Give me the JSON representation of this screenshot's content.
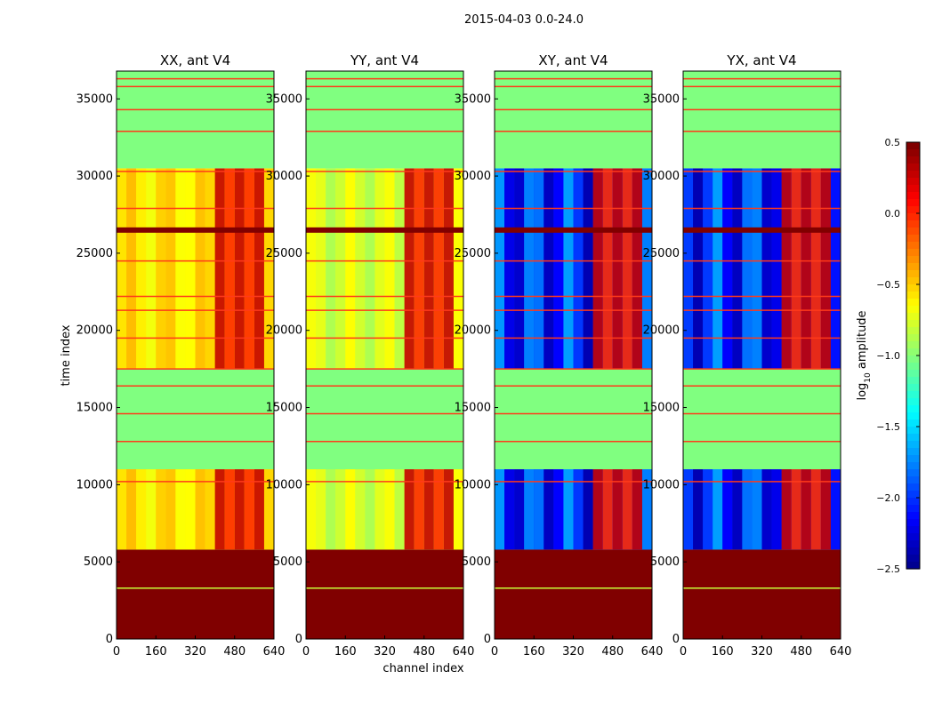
{
  "chart_data": {
    "type": "heatmap",
    "title": "2015-04-03 0.0-24.0",
    "xlabel": "channel index",
    "ylabel": "time index",
    "xlim": [
      0,
      640
    ],
    "ylim": [
      0,
      36800
    ],
    "xticks": [
      0,
      160,
      320,
      480,
      640
    ],
    "yticks": [
      0,
      5000,
      10000,
      15000,
      20000,
      25000,
      30000,
      35000
    ],
    "panels": [
      {
        "title": "XX, ant V4",
        "kind": "auto",
        "base_log": -0.55
      },
      {
        "title": "YY, ant V4",
        "kind": "auto",
        "base_log": -0.75
      },
      {
        "title": "XY, ant V4",
        "kind": "cross",
        "base_log": -2.0
      },
      {
        "title": "YX, ant V4",
        "kind": "cross",
        "base_log": -2.0
      }
    ],
    "segments": [
      {
        "t0": 0,
        "t1": 5800,
        "log_amp": 0.5,
        "label": "saturated"
      },
      {
        "t0": 5800,
        "t1": 11000,
        "log_amp": null,
        "label": "data"
      },
      {
        "t0": 11000,
        "t1": 17500,
        "log_amp": -1.0,
        "label": "flat"
      },
      {
        "t0": 17500,
        "t1": 30500,
        "log_amp": null,
        "label": "data"
      },
      {
        "t0": 30500,
        "t1": 36800,
        "log_amp": -1.0,
        "label": "flat"
      }
    ],
    "rfi_band": {
      "ch0": 400,
      "ch1": 600,
      "log_amp": 0.3
    },
    "colorbar": {
      "label": "log10 amplitude",
      "range": [
        -2.5,
        0.5
      ],
      "ticks": [
        "0.5",
        "0.0",
        "−0.5",
        "−1.0",
        "−1.5",
        "−2.0",
        "−2.5"
      ],
      "colormap": "jet"
    }
  }
}
